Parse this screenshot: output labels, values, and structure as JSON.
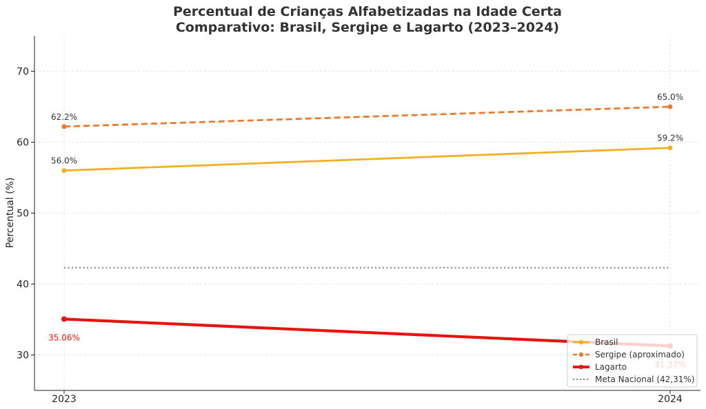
{
  "chart_data": {
    "type": "line",
    "title": "Percentual de Crianças Alfabetizadas na Idade Certa",
    "subtitle": "Comparativo: Brasil, Sergipe e Lagarto (2023–2024)",
    "xlabel": "",
    "ylabel": "Percentual (%)",
    "x": [
      "2023",
      "2024"
    ],
    "ylim": [
      25,
      75
    ],
    "yticks": [
      30,
      40,
      50,
      60,
      70
    ],
    "grid": true,
    "legend_position": "bottom-right",
    "series": [
      {
        "name": "Brasil",
        "values": [
          56.0,
          59.2
        ],
        "labels": [
          "56.0%",
          "59.2%"
        ],
        "color": "#f0b020",
        "style": "solid",
        "label_color": "#333333"
      },
      {
        "name": "Sergipe (aproximado)",
        "values": [
          62.2,
          65.0
        ],
        "labels": [
          "62.2%",
          "65.0%"
        ],
        "color": "#e87a2e",
        "style": "dashed",
        "label_color": "#333333"
      },
      {
        "name": "Lagarto",
        "values": [
          35.06,
          31.27
        ],
        "labels": [
          "35.06%",
          "31.27%"
        ],
        "color": "#e8130e",
        "style": "solid-thick",
        "label_color": "#e8130e"
      }
    ],
    "reference_line": {
      "name": "Meta Nacional (42,31%)",
      "value": 42.31,
      "color": "#808080",
      "style": "dotted"
    }
  }
}
